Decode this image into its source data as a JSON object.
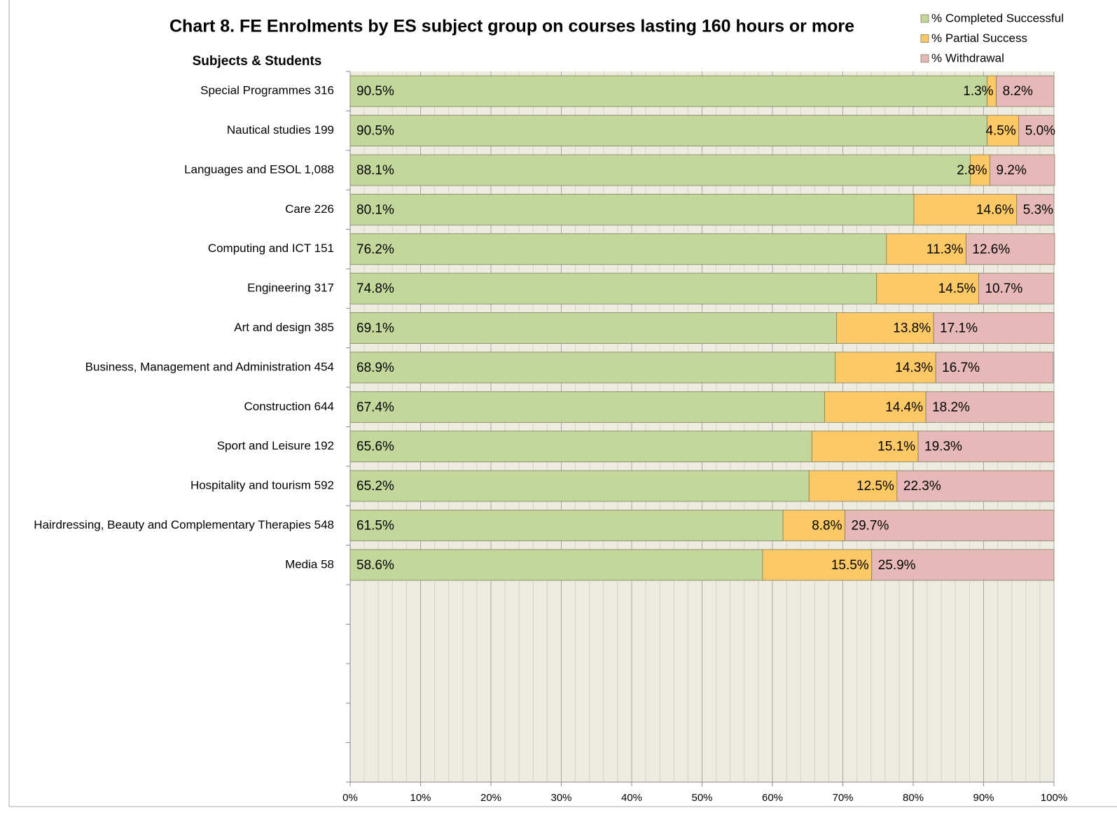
{
  "chart_data": {
    "type": "stacked_barh",
    "title": "Chart 8. FE Enrolments by ES subject group on courses lasting 160 hours or more",
    "axis_title": "Subjects & Students",
    "categories": [
      "Special Programmes  316",
      "Nautical studies  199",
      "Languages and ESOL  1,088",
      "Care  226",
      "Computing and ICT  151",
      "Engineering  317",
      "Art and design  385",
      "Business, Management and Administration  454",
      "Construction  644",
      "Sport and Leisure  192",
      "Hospitality and tourism  592",
      "Hairdressing, Beauty and Complementary Therapies  548",
      "Media  58",
      null,
      null,
      null,
      null,
      null
    ],
    "series": [
      {
        "name": "% Completed Successful",
        "color": "#c4d79b",
        "values": [
          90.5,
          90.5,
          88.1,
          80.1,
          76.2,
          74.8,
          69.1,
          68.9,
          67.4,
          65.6,
          65.2,
          61.5,
          58.6,
          null,
          null,
          null,
          null,
          null
        ],
        "value_labels": [
          "90.5%",
          "90.5%",
          "88.1%",
          "80.1%",
          "76.2%",
          "74.8%",
          "69.1%",
          "68.9%",
          "67.4%",
          "65.6%",
          "65.2%",
          "61.5%",
          "58.6%",
          null,
          null,
          null,
          null,
          null
        ]
      },
      {
        "name": "% Partial Success",
        "color": "#fcc966",
        "values": [
          1.3,
          4.5,
          2.8,
          14.6,
          11.3,
          14.5,
          13.8,
          14.3,
          14.4,
          15.1,
          12.5,
          8.8,
          15.5,
          null,
          null,
          null,
          null,
          null
        ],
        "value_labels": [
          "1.3%",
          "4.5%",
          "2.8%",
          "14.6%",
          "11.3%",
          "14.5%",
          "13.8%",
          "14.3%",
          "14.4%",
          "15.1%",
          "12.5%",
          "8.8%",
          "15.5%",
          null,
          null,
          null,
          null,
          null
        ]
      },
      {
        "name": "% Withdrawal",
        "color": "#e6b9b8",
        "values": [
          8.2,
          5.0,
          9.2,
          5.3,
          12.6,
          10.7,
          17.1,
          16.7,
          18.2,
          19.3,
          22.3,
          29.7,
          25.9,
          null,
          null,
          null,
          null,
          null
        ],
        "value_labels": [
          "8.2%",
          "5.0%",
          "9.2%",
          "5.3%",
          "12.6%",
          "10.7%",
          "17.1%",
          "16.7%",
          "18.2%",
          "19.3%",
          "22.3%",
          "29.7%",
          "25.9%",
          null,
          null,
          null,
          null,
          null
        ]
      }
    ],
    "xlim": [
      0,
      100
    ],
    "xticks": [
      {
        "value": 0,
        "label": "0%"
      },
      {
        "value": 10,
        "label": "10%"
      },
      {
        "value": 20,
        "label": "20%"
      },
      {
        "value": 30,
        "label": "30%"
      },
      {
        "value": 40,
        "label": "40%"
      },
      {
        "value": 50,
        "label": "50%"
      },
      {
        "value": 60,
        "label": "60%"
      },
      {
        "value": 70,
        "label": "70%"
      },
      {
        "value": 80,
        "label": "80%"
      },
      {
        "value": 90,
        "label": "90%"
      },
      {
        "value": 100,
        "label": "100%"
      }
    ],
    "x_minor_ticks": [
      2,
      4,
      6,
      8,
      12,
      14,
      16,
      18,
      22,
      24,
      26,
      28,
      32,
      34,
      36,
      38,
      42,
      44,
      46,
      48,
      52,
      54,
      56,
      58,
      62,
      64,
      66,
      68,
      72,
      74,
      76,
      78,
      82,
      84,
      86,
      88,
      92,
      94,
      96,
      98
    ],
    "grid": true,
    "legend": "top-right",
    "plot_background": "#eeece1"
  }
}
